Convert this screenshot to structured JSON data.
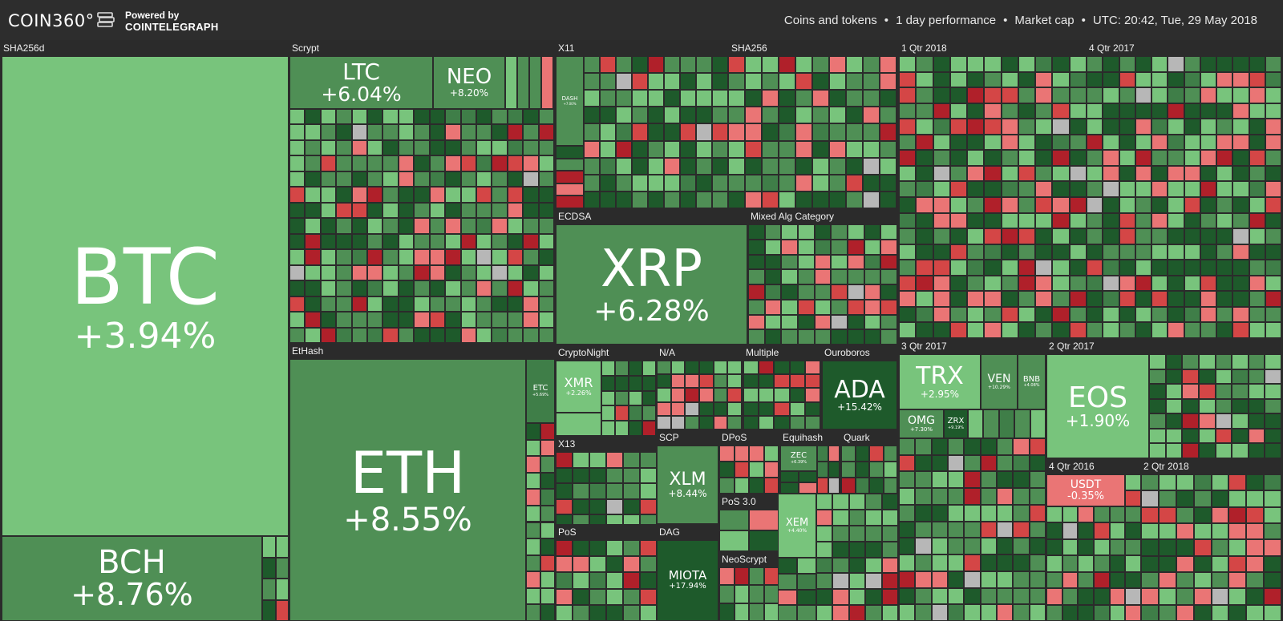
{
  "header": {
    "logo": "COIN360°",
    "powered_by": "Powered by",
    "powered_brand": "COINTELEGRAPH",
    "filters": [
      "Coins and tokens",
      "1 day performance",
      "Market cap"
    ],
    "separator": "•",
    "utc_time": "UTC: 20:42, Tue, 29 May 2018"
  },
  "colors": {
    "dark_green": "#1e5a2b",
    "mid_green": "#3f7e48",
    "green": "#4f8f55",
    "light_green": "#78c47c",
    "pale_red": "#ea7575",
    "red": "#d44646",
    "dark_red": "#b0202a",
    "grey": "#b7b7b7",
    "background": "#2b2b2b"
  },
  "groups": [
    {
      "id": "sha256d",
      "label": "SHA256d"
    },
    {
      "id": "scrypt",
      "label": "Scrypt"
    },
    {
      "id": "x11",
      "label": "X11"
    },
    {
      "id": "sha256",
      "label": "SHA256"
    },
    {
      "id": "q1_2018",
      "label": "1 Qtr 2018"
    },
    {
      "id": "q4_2017",
      "label": "4 Qtr 2017"
    },
    {
      "id": "ecdsa",
      "label": "ECDSA"
    },
    {
      "id": "mixed",
      "label": "Mixed Alg Category"
    },
    {
      "id": "ethash",
      "label": "EtHash"
    },
    {
      "id": "cryptonight",
      "label": "CryptoNight"
    },
    {
      "id": "na",
      "label": "N/A"
    },
    {
      "id": "multiple",
      "label": "Multiple"
    },
    {
      "id": "ouroboros",
      "label": "Ouroboros"
    },
    {
      "id": "q3_2017",
      "label": "3 Qtr 2017"
    },
    {
      "id": "q2_2017",
      "label": "2 Qtr 2017"
    },
    {
      "id": "x13",
      "label": "X13"
    },
    {
      "id": "scp",
      "label": "SCP"
    },
    {
      "id": "dpos",
      "label": "DPoS"
    },
    {
      "id": "equihash",
      "label": "Equihash"
    },
    {
      "id": "quark",
      "label": "Quark"
    },
    {
      "id": "q4_2016",
      "label": "4 Qtr 2016"
    },
    {
      "id": "q2_2018",
      "label": "2 Qtr 2018"
    },
    {
      "id": "pos30",
      "label": "PoS 3.0"
    },
    {
      "id": "pos",
      "label": "PoS"
    },
    {
      "id": "dag",
      "label": "DAG"
    },
    {
      "id": "neoscrypt",
      "label": "NeoScrypt"
    }
  ],
  "coins": [
    {
      "id": "btc",
      "symbol": "BTC",
      "change": "+3.94%",
      "change_pct": 3.94
    },
    {
      "id": "bch",
      "symbol": "BCH",
      "change": "+8.76%",
      "change_pct": 8.76
    },
    {
      "id": "ltc",
      "symbol": "LTC",
      "change": "+6.04%",
      "change_pct": 6.04
    },
    {
      "id": "neo",
      "symbol": "NEO",
      "change": "+8.20%",
      "change_pct": 8.2
    },
    {
      "id": "dash",
      "symbol": "DASH",
      "change": "+7.00%",
      "change_pct": 7.0
    },
    {
      "id": "xrp",
      "symbol": "XRP",
      "change": "+6.28%",
      "change_pct": 6.28
    },
    {
      "id": "eth",
      "symbol": "ETH",
      "change": "+8.55%",
      "change_pct": 8.55
    },
    {
      "id": "etc",
      "symbol": "ETC",
      "change": "+5.69%",
      "change_pct": 5.69
    },
    {
      "id": "xmr",
      "symbol": "XMR",
      "change": "+2.26%",
      "change_pct": 2.26
    },
    {
      "id": "ada",
      "symbol": "ADA",
      "change": "+15.42%",
      "change_pct": 15.42
    },
    {
      "id": "trx",
      "symbol": "TRX",
      "change": "+2.95%",
      "change_pct": 2.95
    },
    {
      "id": "ven",
      "symbol": "VEN",
      "change": "+10.29%",
      "change_pct": 10.29
    },
    {
      "id": "bnb",
      "symbol": "BNB",
      "change": "+4.08%",
      "change_pct": 4.08
    },
    {
      "id": "omg",
      "symbol": "OMG",
      "change": "+7.30%",
      "change_pct": 7.3
    },
    {
      "id": "zrx",
      "symbol": "ZRX",
      "change": "+9.19%",
      "change_pct": 9.19
    },
    {
      "id": "eos",
      "symbol": "EOS",
      "change": "+1.90%",
      "change_pct": 1.9
    },
    {
      "id": "xlm",
      "symbol": "XLM",
      "change": "+8.44%",
      "change_pct": 8.44
    },
    {
      "id": "zec",
      "symbol": "ZEC",
      "change": "+6.39%",
      "change_pct": 6.39
    },
    {
      "id": "usdt",
      "symbol": "USDT",
      "change": "-0.35%",
      "change_pct": -0.35
    },
    {
      "id": "xem",
      "symbol": "XEM",
      "change": "+4.40%",
      "change_pct": 4.4
    },
    {
      "id": "miota",
      "symbol": "MIOTA",
      "change": "+17.94%",
      "change_pct": 17.94
    }
  ]
}
